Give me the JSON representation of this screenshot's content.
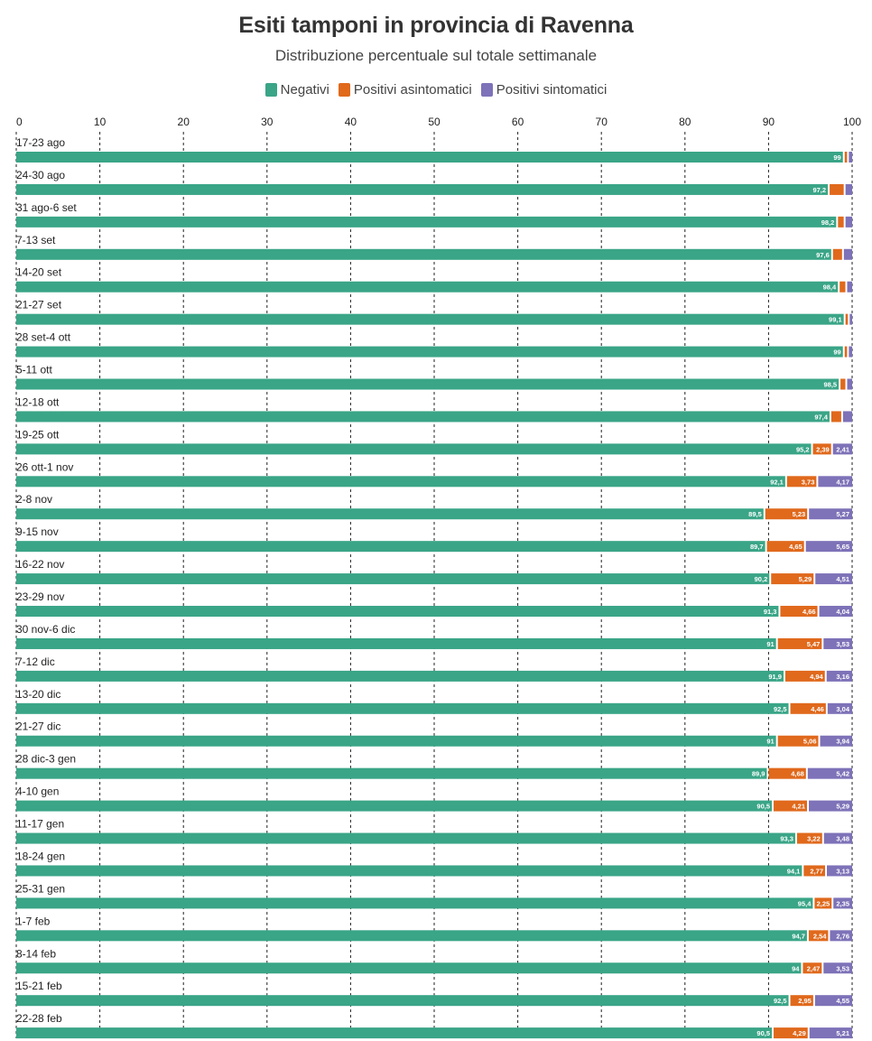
{
  "chart_data": {
    "type": "bar",
    "orientation": "horizontal",
    "stacked": true,
    "title": "Esiti tamponi in provincia di Ravenna",
    "subtitle": "Distribuzione percentuale sul totale settimanale",
    "xlim": [
      0,
      100
    ],
    "xticks": [
      0,
      10,
      20,
      30,
      40,
      50,
      60,
      70,
      80,
      90,
      100
    ],
    "grid": "vertical dashed",
    "legend_position": "top-center",
    "categories": [
      "17-23 ago",
      "24-30 ago",
      "31 ago-6 set",
      "7-13 set",
      "14-20 set",
      "21-27 set",
      "28 set-4 ott",
      "5-11 ott",
      "12-18 ott",
      "19-25 ott",
      "26 ott-1 nov",
      "2-8 nov",
      "9-15 nov",
      "16-22 nov",
      "23-29 nov",
      "30 nov-6 dic",
      "7-12 dic",
      "13-20 dic",
      "21-27 dic",
      "28 dic-3 gen",
      "4-10 gen",
      "11-17 gen",
      "18-24 gen",
      "25-31 gen",
      "1-7 feb",
      "8-14 feb",
      "15-21 feb",
      "22-28 feb"
    ],
    "series": [
      {
        "name": "Negativi",
        "color": "#3aa587",
        "values": [
          99,
          97.2,
          98.2,
          97.6,
          98.4,
          99.1,
          99,
          98.5,
          97.4,
          95.2,
          92.1,
          89.5,
          89.7,
          90.2,
          91.3,
          91,
          91.9,
          92.5,
          91,
          89.9,
          90.5,
          93.3,
          94.1,
          95.4,
          94.7,
          94,
          92.5,
          90.5
        ],
        "labels": [
          "99",
          "97,2",
          "98,2",
          "97,6",
          "98,4",
          "99,1",
          "99",
          "98,5",
          "97,4",
          "95,2",
          "92,1",
          "89,5",
          "89,7",
          "90,2",
          "91,3",
          "91",
          "91,9",
          "92,5",
          "91",
          "89,9",
          "90,5",
          "93,3",
          "94,1",
          "95,4",
          "94,7",
          "94",
          "92,5",
          "90,5"
        ]
      },
      {
        "name": "Positivi asintomatici",
        "color": "#e0691c",
        "values": [
          0.5,
          1.9,
          0.9,
          1.3,
          0.9,
          0.5,
          0.5,
          0.8,
          1.4,
          2.39,
          3.73,
          5.23,
          4.65,
          5.29,
          4.66,
          5.47,
          4.94,
          4.46,
          5.06,
          4.68,
          4.21,
          3.22,
          2.77,
          2.25,
          2.54,
          2.47,
          2.95,
          4.29
        ],
        "labels": [
          "",
          "",
          "",
          "",
          "",
          "",
          "",
          "",
          "",
          "2,39",
          "3,73",
          "5,23",
          "4,65",
          "5,29",
          "4,66",
          "5,47",
          "4,94",
          "4,46",
          "5,06",
          "4,68",
          "4,21",
          "3,22",
          "2,77",
          "2,25",
          "2,54",
          "2,47",
          "2,95",
          "4,29"
        ]
      },
      {
        "name": "Positivi sintomatici",
        "color": "#7e72b8",
        "values": [
          0.5,
          0.9,
          0.9,
          1.1,
          0.7,
          0.4,
          0.5,
          0.7,
          1.2,
          2.41,
          4.17,
          5.27,
          5.65,
          4.51,
          4.04,
          3.53,
          3.16,
          3.04,
          3.94,
          5.42,
          5.29,
          3.48,
          3.13,
          2.35,
          2.76,
          3.53,
          4.55,
          5.21
        ],
        "labels": [
          "",
          "",
          "",
          "",
          "",
          "",
          "",
          "",
          "",
          "2,41",
          "4,17",
          "5,27",
          "5,65",
          "4,51",
          "4,04",
          "3,53",
          "3,16",
          "3,04",
          "3,94",
          "5,42",
          "5,29",
          "3,48",
          "3,13",
          "2,35",
          "2,76",
          "3,53",
          "4,55",
          "5,21"
        ]
      }
    ]
  }
}
